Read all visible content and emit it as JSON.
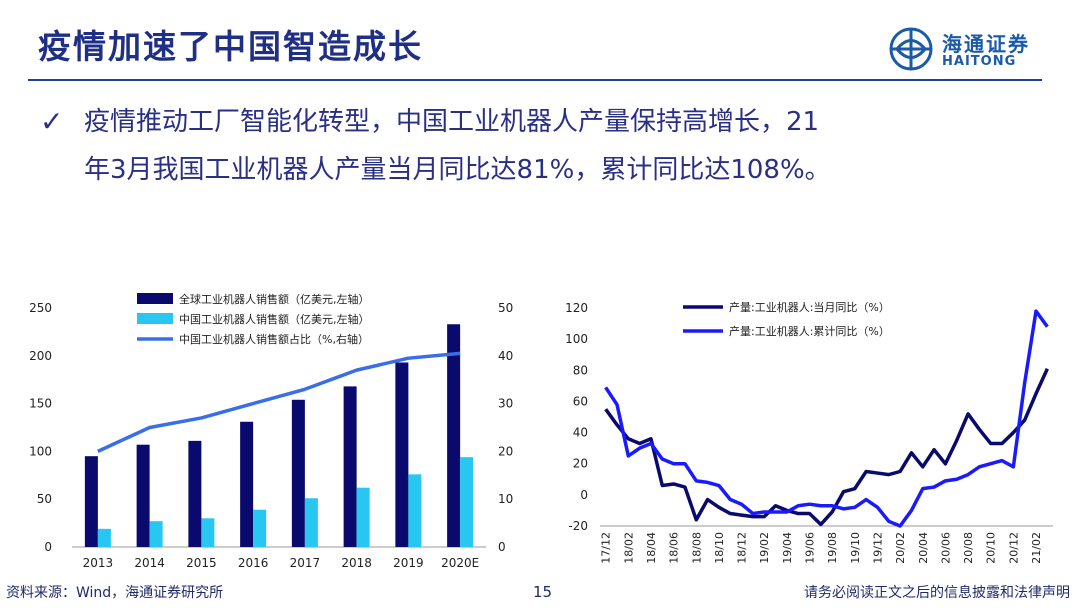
{
  "header": {
    "title": "疫情加速了中国智造成长",
    "logo_cn": "海通证券",
    "logo_en": "HAITONG"
  },
  "bullet": {
    "line1": "疫情推动工厂智能化转型，中国工业机器人产量保持高增长，21",
    "line2": "年3月我国工业机器人产量当月同比达81%，累计同比达108%。"
  },
  "footer": {
    "source": "资料来源：Wind，海通证券研究所",
    "page": "15",
    "disclaimer": "请务必阅读正文之后的信息披露和法律声明"
  },
  "colors": {
    "navy": "#0a0a6e",
    "cyan": "#27c7f2",
    "blue_line": "#3a6ee8",
    "bright_blue": "#1a1aff"
  },
  "chart_data": [
    {
      "type": "bar",
      "categories": [
        "2013",
        "2014",
        "2015",
        "2016",
        "2017",
        "2018",
        "2019",
        "2020E"
      ],
      "series": [
        {
          "name": "全球工业机器人销售额（亿美元,左轴）",
          "type": "bar",
          "axis": "left",
          "color": "#0a0a6e",
          "values": [
            95,
            107,
            111,
            131,
            154,
            168,
            193,
            233
          ]
        },
        {
          "name": "中国工业机器人销售额（亿美元,左轴）",
          "type": "bar",
          "axis": "left",
          "color": "#27c7f2",
          "values": [
            19,
            27,
            30,
            39,
            51,
            62,
            76,
            94
          ]
        },
        {
          "name": "中国工业机器人销售额占比（%,右轴）",
          "type": "line",
          "axis": "right",
          "color": "#3a6ee8",
          "values": [
            20,
            25,
            27,
            30,
            33,
            37,
            39.5,
            40.5
          ]
        }
      ],
      "left_ticks": [
        "0",
        "50",
        "100",
        "150",
        "200",
        "250"
      ],
      "right_ticks": [
        "0",
        "10",
        "20",
        "30",
        "40",
        "50"
      ],
      "ylim_left": [
        0,
        250
      ],
      "ylim_right": [
        0,
        50
      ],
      "legend_position": "top"
    },
    {
      "type": "line",
      "x": [
        "17/12",
        "18/01",
        "18/02",
        "18/03",
        "18/04",
        "18/05",
        "18/06",
        "18/07",
        "18/08",
        "18/09",
        "18/10",
        "18/11",
        "18/12",
        "19/01",
        "19/02",
        "19/03",
        "19/04",
        "19/05",
        "19/06",
        "19/07",
        "19/08",
        "19/09",
        "19/10",
        "19/11",
        "19/12",
        "20/01",
        "20/02",
        "20/03",
        "20/04",
        "20/05",
        "20/06",
        "20/07",
        "20/08",
        "20/09",
        "20/10",
        "20/11",
        "20/12",
        "21/01",
        "21/02",
        "21/03"
      ],
      "x_ticks": [
        "17/12",
        "18/02",
        "18/04",
        "18/06",
        "18/08",
        "18/10",
        "18/12",
        "19/02",
        "19/04",
        "19/06",
        "19/08",
        "19/10",
        "19/12",
        "20/02",
        "20/04",
        "20/06",
        "20/08",
        "20/10",
        "20/12",
        "21/02"
      ],
      "series": [
        {
          "name": "产量:工业机器人:当月同比（%）",
          "color": "#0a0a6e",
          "values": [
            55,
            45,
            36,
            33,
            36,
            6,
            7,
            5,
            -16,
            -3,
            -8,
            -12,
            -13,
            -14,
            -14,
            -7,
            -10,
            -12,
            -12,
            -19,
            -11,
            2,
            4,
            15,
            14,
            13,
            15,
            27,
            18,
            29,
            20,
            35,
            52,
            42,
            33,
            33,
            40,
            48,
            65,
            81
          ]
        },
        {
          "name": "产量:工业机器人:累计同比（%）",
          "color": "#1a1aff",
          "values": [
            69,
            58,
            25,
            30,
            33,
            23,
            20,
            20,
            9,
            8,
            6,
            -3,
            -6,
            -12,
            -11,
            -11,
            -11,
            -7,
            -6,
            -7,
            -7,
            -9,
            -8,
            -3,
            -8,
            -17,
            -20,
            -10,
            4,
            5,
            9,
            10,
            13,
            18,
            20,
            22,
            18,
            72,
            118,
            108
          ]
        }
      ],
      "y_ticks": [
        "-20",
        "0",
        "20",
        "40",
        "60",
        "80",
        "100",
        "120"
      ],
      "ylim": [
        -20,
        120
      ],
      "legend_position": "top"
    }
  ]
}
